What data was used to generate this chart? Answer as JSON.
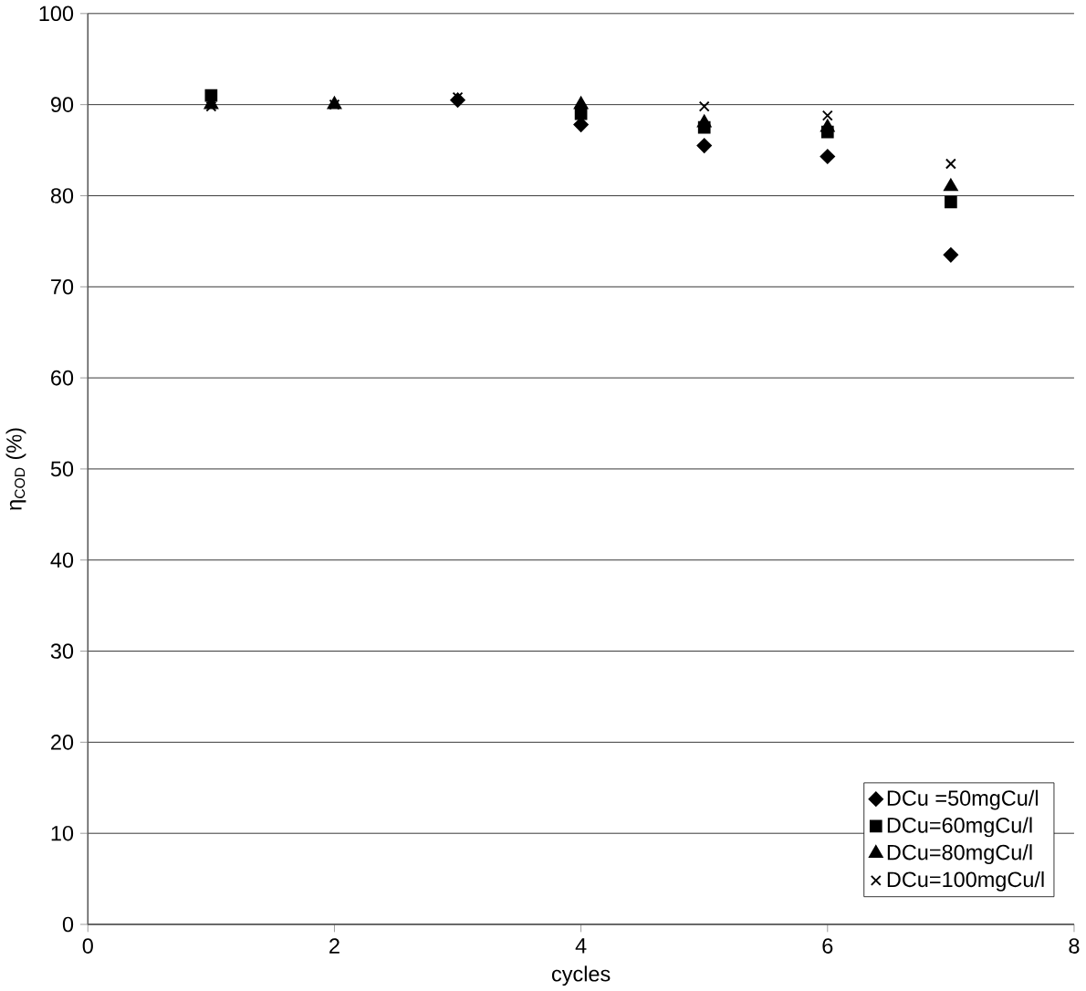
{
  "chart_data": {
    "type": "scatter",
    "xlabel": "cycles",
    "ylabel": "η$_{COD}$ (%)",
    "x": [
      1,
      2,
      3,
      4,
      5,
      6,
      7
    ],
    "series": [
      {
        "name": "DCu =50mgCu/l",
        "color": "#000000",
        "marker": "diamond",
        "values": [
          null,
          null,
          90.5,
          87.8,
          85.5,
          84.3,
          73.5
        ]
      },
      {
        "name": "DCu=60mgCu/l",
        "color": "#000000",
        "marker": "square",
        "values": [
          91,
          null,
          null,
          89,
          87.5,
          87,
          79.3
        ]
      },
      {
        "name": "DCu=80mgCu/l",
        "color": "#000000",
        "marker": "triangle",
        "values": [
          90,
          90,
          null,
          90,
          88,
          87.5,
          81
        ]
      },
      {
        "name": "DCu=100mgCu/l",
        "color": "#000000",
        "marker": "cross",
        "values": [
          89.8,
          90,
          90.8,
          null,
          89.8,
          88.8,
          83.5
        ]
      }
    ],
    "xlim": [
      0,
      8
    ],
    "ylim": [
      0,
      100
    ],
    "xticks": [
      0,
      2,
      4,
      6,
      8
    ],
    "yticks": [
      0,
      10,
      20,
      30,
      40,
      50,
      60,
      70,
      80,
      90,
      100
    ],
    "grid": "y",
    "legend": "bottom right"
  }
}
